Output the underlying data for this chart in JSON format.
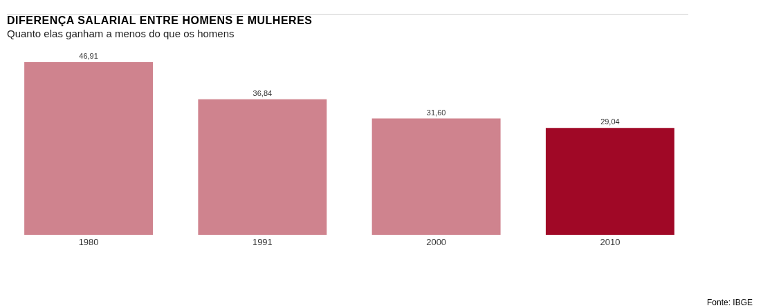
{
  "chart_data": {
    "type": "bar",
    "title": "DIFERENÇA SALARIAL ENTRE HOMENS E MULHERES",
    "subtitle": "Quanto elas ganham a menos do que os homens",
    "categories": [
      "1980",
      "1991",
      "2000",
      "2010"
    ],
    "values": [
      46.91,
      36.84,
      31.6,
      29.04
    ],
    "value_labels": [
      "46,91",
      "36,84",
      "31,60",
      "29,04"
    ],
    "colors": [
      "#cf838e",
      "#cf838e",
      "#cf838e",
      "#a00826"
    ],
    "annotations": [
      "Fonte: IBGE"
    ]
  }
}
